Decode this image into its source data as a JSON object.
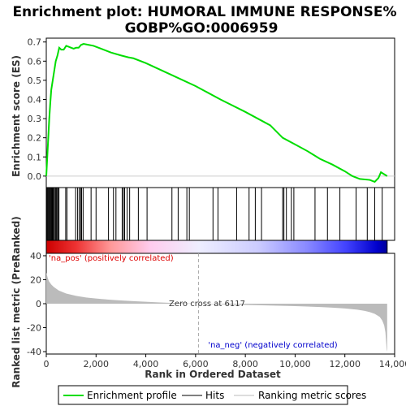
{
  "chart_data": {
    "type": "line",
    "title_line1": "Enrichment plot: HUMORAL IMMUNE RESPONSE%",
    "title_line2": "GOBP%GO:0006959",
    "xlabel": "Rank in Ordered Dataset",
    "ylabel_top": "Enrichment score (ES)",
    "ylabel_bottom": "Ranked list metric (PreRanked)",
    "xlim": [
      0,
      14000
    ],
    "ylim_top": [
      -0.06,
      0.72
    ],
    "ylim_bottom": [
      -42,
      42
    ],
    "x_ticks": [
      0,
      2000,
      4000,
      6000,
      8000,
      10000,
      12000,
      14000
    ],
    "x_tick_labels": [
      "0",
      "2,000",
      "4,000",
      "6,000",
      "8,000",
      "10,000",
      "12,000",
      "14,000"
    ],
    "y_ticks_top": [
      0.0,
      0.1,
      0.2,
      0.3,
      0.4,
      0.5,
      0.6,
      0.7
    ],
    "y_tick_labels_top": [
      "0.0",
      "0.1",
      "0.2",
      "0.3",
      "0.4",
      "0.5",
      "0.6",
      "0.7"
    ],
    "y_ticks_bottom": [
      40,
      20,
      0,
      -20,
      -40
    ],
    "y_tick_labels_bottom": [
      "40",
      "20",
      "0",
      "-20",
      "-40"
    ],
    "dataset_size": 13700,
    "zero_cross": 6117,
    "zero_cross_label": "Zero cross at 6117",
    "pos_label": "'na_pos' (positively correlated)",
    "neg_label": "'na_neg' (negatively correlated)",
    "legend": [
      "Enrichment profile",
      "Hits",
      "Ranking metric scores"
    ],
    "colors": {
      "es_line": "#00dd00",
      "hits": "#000000",
      "metric_fill": "#bbbbbb",
      "pos_text": "#dd0000",
      "neg_text": "#0000cc",
      "zero_line": "#aaaaaa"
    },
    "enrichment_profile": {
      "x": [
        0,
        40,
        80,
        120,
        160,
        200,
        260,
        320,
        380,
        450,
        520,
        600,
        700,
        800,
        900,
        1000,
        1100,
        1200,
        1300,
        1400,
        1500,
        1700,
        1900,
        2200,
        2600,
        3000,
        3300,
        3500,
        4000,
        5000,
        6000,
        7000,
        8000,
        9000,
        9500,
        10000,
        10500,
        11000,
        11500,
        12000,
        12300,
        12600,
        13000,
        13200,
        13350,
        13450,
        13700
      ],
      "y": [
        0.0,
        0.1,
        0.2,
        0.3,
        0.38,
        0.45,
        0.5,
        0.55,
        0.6,
        0.63,
        0.67,
        0.66,
        0.66,
        0.68,
        0.675,
        0.67,
        0.665,
        0.67,
        0.67,
        0.685,
        0.69,
        0.685,
        0.68,
        0.665,
        0.645,
        0.63,
        0.62,
        0.615,
        0.59,
        0.53,
        0.47,
        0.4,
        0.335,
        0.265,
        0.2,
        0.165,
        0.13,
        0.09,
        0.06,
        0.025,
        0.0,
        -0.015,
        -0.02,
        -0.03,
        -0.01,
        0.02,
        0.0
      ]
    },
    "hits_x": [
      30,
      60,
      90,
      110,
      140,
      170,
      200,
      230,
      260,
      290,
      330,
      370,
      400,
      430,
      470,
      510,
      780,
      830,
      1180,
      1260,
      1330,
      1380,
      1420,
      1480,
      1800,
      2000,
      2500,
      2700,
      2800,
      3050,
      3100,
      3150,
      3250,
      3350,
      3700,
      4050,
      5050,
      5300,
      5650,
      5750,
      6700,
      6900,
      7650,
      8150,
      8400,
      8650,
      9500,
      9550,
      9650,
      9850,
      9950,
      10800,
      11300,
      11800,
      12450,
      12900,
      13200,
      13500
    ],
    "metric_profile": {
      "x": [
        0,
        50,
        100,
        200,
        300,
        500,
        800,
        1200,
        1600,
        2000,
        2500,
        3000,
        3500,
        4000,
        4500,
        5000,
        5500,
        6117,
        7000,
        8000,
        9000,
        10000,
        11000,
        11500,
        12000,
        12500,
        12800,
        13000,
        13200,
        13400,
        13500,
        13580,
        13630,
        13680,
        13700
      ],
      "y": [
        26,
        22,
        19,
        16,
        14,
        11,
        8.5,
        6.5,
        5.2,
        4.3,
        3.4,
        2.7,
        2.1,
        1.6,
        1.1,
        0.7,
        0.35,
        0,
        -0.5,
        -1.0,
        -1.5,
        -2.0,
        -2.8,
        -3.3,
        -4.0,
        -5.0,
        -6.0,
        -7.0,
        -8.5,
        -11,
        -14,
        -18,
        -24,
        -38,
        -40
      ]
    },
    "color_bar_stops": [
      {
        "x": 0,
        "color": "#cc0000"
      },
      {
        "x": 1200,
        "color": "#ee3333"
      },
      {
        "x": 2600,
        "color": "#ff9999"
      },
      {
        "x": 4200,
        "color": "#ffccee"
      },
      {
        "x": 6117,
        "color": "#eeeeff"
      },
      {
        "x": 8500,
        "color": "#ccccff"
      },
      {
        "x": 10500,
        "color": "#8888ff"
      },
      {
        "x": 12000,
        "color": "#4444ff"
      },
      {
        "x": 13300,
        "color": "#0000cc"
      },
      {
        "x": 13700,
        "color": "#000099"
      }
    ]
  }
}
